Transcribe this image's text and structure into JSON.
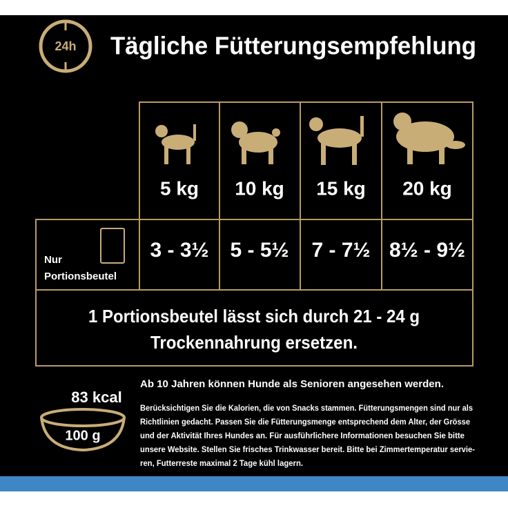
{
  "header": {
    "badge": "24h",
    "title": "Tägliche Fütterungsempfehlung"
  },
  "table": {
    "weights": [
      "5 kg",
      "10 kg",
      "15 kg",
      "20 kg"
    ],
    "row_label": [
      "Nur",
      "Portionsbeutel"
    ],
    "portions": [
      "3 - 3½",
      "5 - 5½",
      "7 - 7½",
      "8½ - 9½"
    ],
    "note": [
      "1 Portionsbeutel lässt sich durch 21 - 24 g",
      "Trockennahrung ersetzen."
    ]
  },
  "footer": {
    "kcal": "83 kcal",
    "weight": "100 g",
    "headline": "Ab 10 Jahren können Hunde als Senioren angesehen werden.",
    "body": [
      "Berücksichtigen Sie die Kalorien, die von Snacks stammen. Fütterungsmengen sind nur als",
      "Richtlinien gedacht. Passen Sie die Fütterungsmenge entsprechend dem Alter, der Grösse",
      "und der Aktivität Ihres Hundes an. Für ausführlichere Informationen besuchen Sie bitte",
      "unsere Website. Stellen Sie frisches Trinkwasser bereit. Bitte bei Zimmertemperatur servie-",
      "ren, Futterreste maximal 2 Tage kühl lagern."
    ]
  }
}
